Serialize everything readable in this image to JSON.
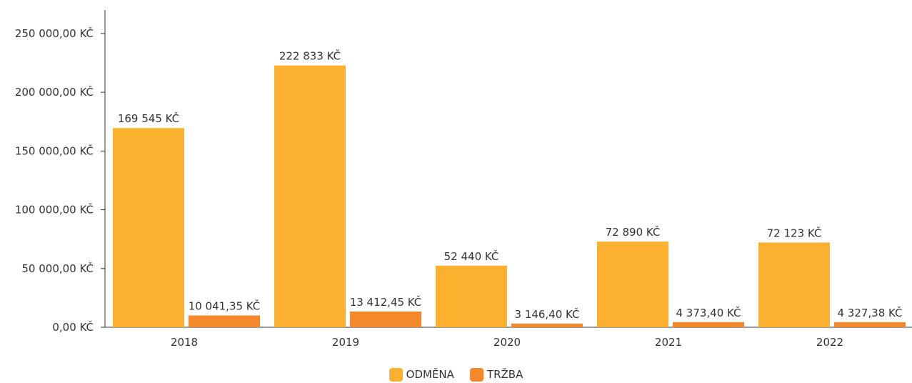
{
  "chart_data": {
    "type": "bar",
    "categories": [
      "2018",
      "2019",
      "2020",
      "2021",
      "2022"
    ],
    "series": [
      {
        "name": "ODMĚNA",
        "color": "#FBB12F",
        "values": [
          169545,
          222833,
          52440,
          72890,
          72123
        ],
        "labels": [
          "169 545 KČ",
          "222 833 KČ",
          "52 440 KČ",
          "72 890 KČ",
          "72 123 KČ"
        ]
      },
      {
        "name": "TRŽBA",
        "color": "#F5882A",
        "values": [
          10041.35,
          13412.45,
          3146.4,
          4373.4,
          4327.38
        ],
        "labels": [
          "10 041,35 KČ",
          "13 412,45 KČ",
          "3 146,40 KČ",
          "4 373,40 KČ",
          "4 327,38 KČ"
        ]
      }
    ],
    "y_ticks": [
      {
        "value": 0,
        "label": "0,00 KČ"
      },
      {
        "value": 50000,
        "label": "50 000,00 KČ"
      },
      {
        "value": 100000,
        "label": "100 000,00 KČ"
      },
      {
        "value": 150000,
        "label": "150 000,00 KČ"
      },
      {
        "value": 200000,
        "label": "200 000,00 KČ"
      },
      {
        "value": 250000,
        "label": "250 000,00 KČ"
      }
    ],
    "ylim": [
      0,
      270000
    ],
    "grid": false,
    "legend_position": "bottom-center"
  }
}
